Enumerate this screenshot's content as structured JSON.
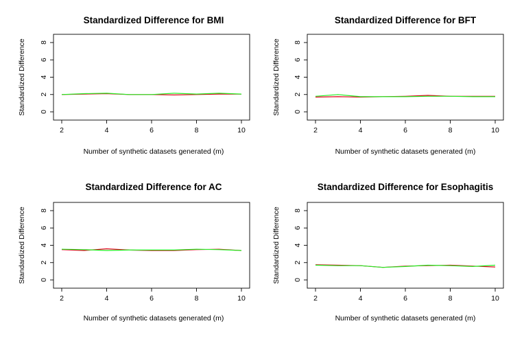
{
  "figure": {
    "colors": {
      "series_a": "#e0001b",
      "series_b": "#22ee22",
      "axis": "#000000",
      "background": "#ffffff"
    }
  },
  "chart_data": [
    {
      "type": "line",
      "title": "Standardized Difference for BMI",
      "xlabel": "Number of synthetic datasets generated (m)",
      "ylabel": "Standardized Difference",
      "xlim": [
        2,
        10
      ],
      "ylim": [
        0,
        8
      ],
      "xticks": [
        "2",
        "4",
        "6",
        "8",
        "10"
      ],
      "yticks": [
        "0",
        "2",
        "4",
        "6",
        "8"
      ],
      "grid": false,
      "legend": "none",
      "x": [
        2,
        3,
        4,
        5,
        6,
        7,
        8,
        9,
        10
      ],
      "series": [
        {
          "color": "#e0001b",
          "values": [
            2.0,
            2.05,
            2.1,
            2.0,
            2.0,
            1.95,
            2.0,
            2.05,
            2.05
          ]
        },
        {
          "color": "#22ee22",
          "values": [
            2.0,
            2.1,
            2.15,
            2.0,
            2.0,
            2.15,
            2.05,
            2.15,
            2.05
          ]
        }
      ]
    },
    {
      "type": "line",
      "title": "Standardized Difference for BFT",
      "xlabel": "Number of synthetic datasets generated (m)",
      "ylabel": "Standardized Difference",
      "xlim": [
        2,
        10
      ],
      "ylim": [
        0,
        8
      ],
      "xticks": [
        "2",
        "4",
        "6",
        "8",
        "10"
      ],
      "yticks": [
        "0",
        "2",
        "4",
        "6",
        "8"
      ],
      "grid": false,
      "legend": "none",
      "x": [
        2,
        3,
        4,
        5,
        6,
        7,
        8,
        9,
        10
      ],
      "series": [
        {
          "color": "#e0001b",
          "values": [
            1.7,
            1.75,
            1.7,
            1.75,
            1.8,
            1.9,
            1.8,
            1.8,
            1.8
          ]
        },
        {
          "color": "#22ee22",
          "values": [
            1.8,
            2.0,
            1.75,
            1.75,
            1.75,
            1.8,
            1.8,
            1.75,
            1.75
          ]
        }
      ]
    },
    {
      "type": "line",
      "title": "Standardized Difference for AC",
      "xlabel": "Number of synthetic datasets generated (m)",
      "ylabel": "Standardized Difference",
      "xlim": [
        2,
        10
      ],
      "ylim": [
        0,
        8
      ],
      "xticks": [
        "2",
        "4",
        "6",
        "8",
        "10"
      ],
      "yticks": [
        "0",
        "2",
        "4",
        "6",
        "8"
      ],
      "grid": false,
      "legend": "none",
      "x": [
        2,
        3,
        4,
        5,
        6,
        7,
        8,
        9,
        10
      ],
      "series": [
        {
          "color": "#e0001b",
          "values": [
            3.5,
            3.4,
            3.6,
            3.45,
            3.4,
            3.4,
            3.5,
            3.55,
            3.4
          ]
        },
        {
          "color": "#22ee22",
          "values": [
            3.55,
            3.5,
            3.4,
            3.45,
            3.45,
            3.45,
            3.55,
            3.5,
            3.4
          ]
        }
      ]
    },
    {
      "type": "line",
      "title": "Standardized Difference for Esophagitis",
      "xlabel": "Number of synthetic datasets generated (m)",
      "ylabel": "Standardized Difference",
      "xlim": [
        2,
        10
      ],
      "ylim": [
        0,
        8
      ],
      "xticks": [
        "2",
        "4",
        "6",
        "8",
        "10"
      ],
      "yticks": [
        "0",
        "2",
        "4",
        "6",
        "8"
      ],
      "grid": false,
      "legend": "none",
      "x": [
        2,
        3,
        4,
        5,
        6,
        7,
        8,
        9,
        10
      ],
      "series": [
        {
          "color": "#e0001b",
          "values": [
            1.75,
            1.7,
            1.65,
            1.45,
            1.6,
            1.65,
            1.7,
            1.6,
            1.5
          ]
        },
        {
          "color": "#22ee22",
          "values": [
            1.7,
            1.65,
            1.65,
            1.45,
            1.55,
            1.7,
            1.65,
            1.55,
            1.7
          ]
        }
      ]
    }
  ]
}
